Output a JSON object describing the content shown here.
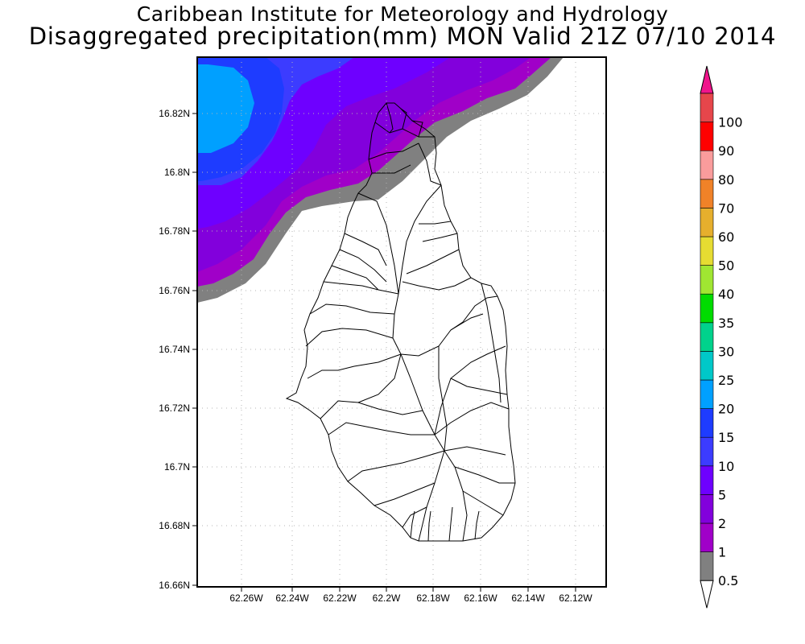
{
  "title": {
    "line1": "Caribbean Institute for Meteorology and Hydrology",
    "line2": "Disaggregated precipitation(mm) MON Valid 21Z 07/10 2014"
  },
  "map": {
    "lon_range": [
      -62.278,
      -62.103
    ],
    "lat_range": [
      16.658,
      16.838
    ],
    "x_ticks": [
      "62.26W",
      "62.24W",
      "62.22W",
      "62.2W",
      "62.18W",
      "62.16W",
      "62.14W",
      "62.12W"
    ],
    "y_ticks": [
      "16.82N",
      "16.8N",
      "16.78N",
      "16.76N",
      "16.74N",
      "16.72N",
      "16.7N",
      "16.68N",
      "16.66N"
    ],
    "grid": "dotted"
  },
  "colorbar": {
    "levels": [
      "0.5",
      "1",
      "2",
      "5",
      "10",
      "15",
      "20",
      "25",
      "30",
      "35",
      "40",
      "50",
      "60",
      "70",
      "80",
      "90",
      "100"
    ],
    "colors": [
      "#808080",
      "#a000c8",
      "#8200dc",
      "#6e00ff",
      "#3c3cff",
      "#1e3cff",
      "#00a0ff",
      "#00c8c8",
      "#00d28c",
      "#00dc00",
      "#a0e632",
      "#e6dc32",
      "#e6af2d",
      "#f08228",
      "#fa9c9c",
      "#ff0000",
      "#e6464b"
    ],
    "under_color": "#ffffff",
    "over_color": "#f0148c"
  }
}
